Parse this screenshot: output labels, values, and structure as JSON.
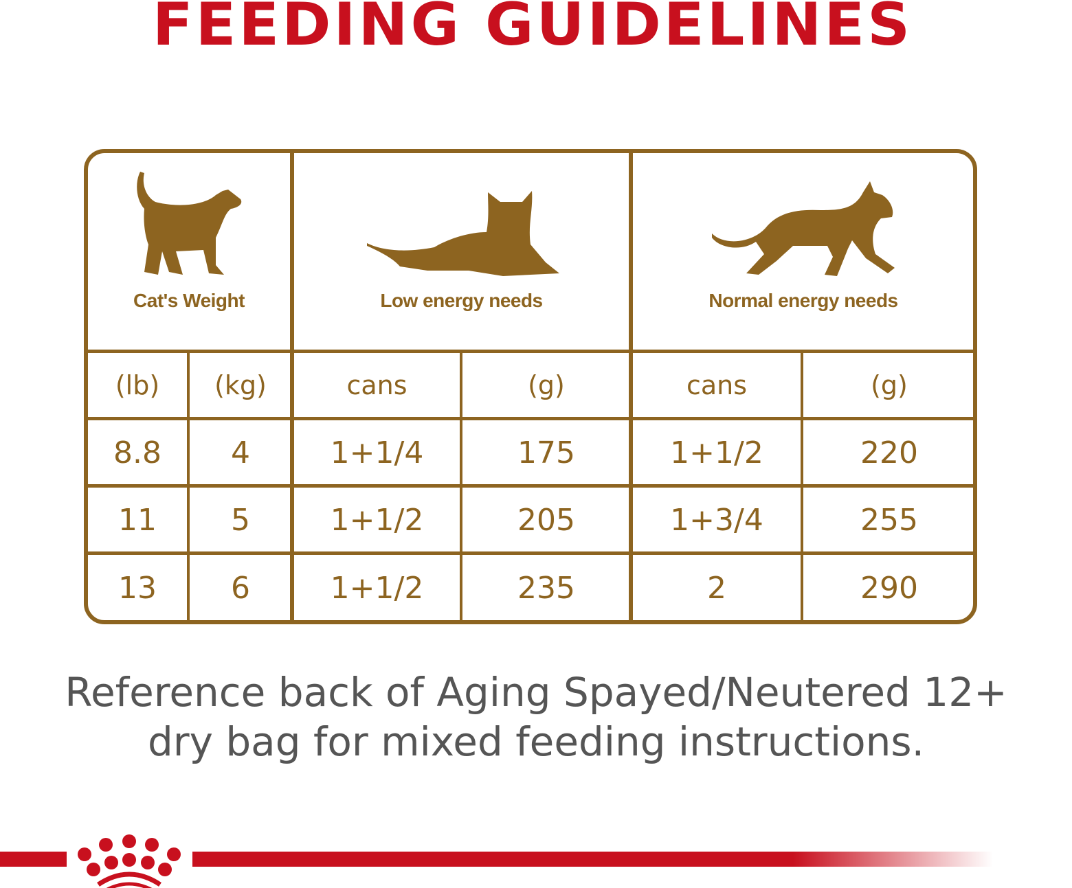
{
  "title": "FEEDING GUIDELINES",
  "table": {
    "headers": [
      "Cat's Weight",
      "Low energy needs",
      "Normal energy needs"
    ],
    "subheaders": [
      "(lb)",
      "(kg)",
      "cans",
      "(g)",
      "cans",
      "(g)"
    ],
    "rows": [
      [
        "8.8",
        "4",
        "1+1/4",
        "175",
        "1+1/2",
        "220"
      ],
      [
        "11",
        "5",
        "1+1/2",
        "205",
        "1+3/4",
        "255"
      ],
      [
        "13",
        "6",
        "1+1/2",
        "235",
        "2",
        "290"
      ]
    ],
    "icons": [
      "standing-cat-icon",
      "lying-cat-icon",
      "walking-cat-icon"
    ]
  },
  "note": {
    "line1": "Reference back of Aging Spayed/Neutered 12+",
    "line2": "dry bag for mixed feeding instructions."
  },
  "colors": {
    "brand_red": "#c8101e",
    "table_brown": "#8d6420",
    "note_gray": "#555555"
  },
  "logo": "royal-canin-crown-logo"
}
